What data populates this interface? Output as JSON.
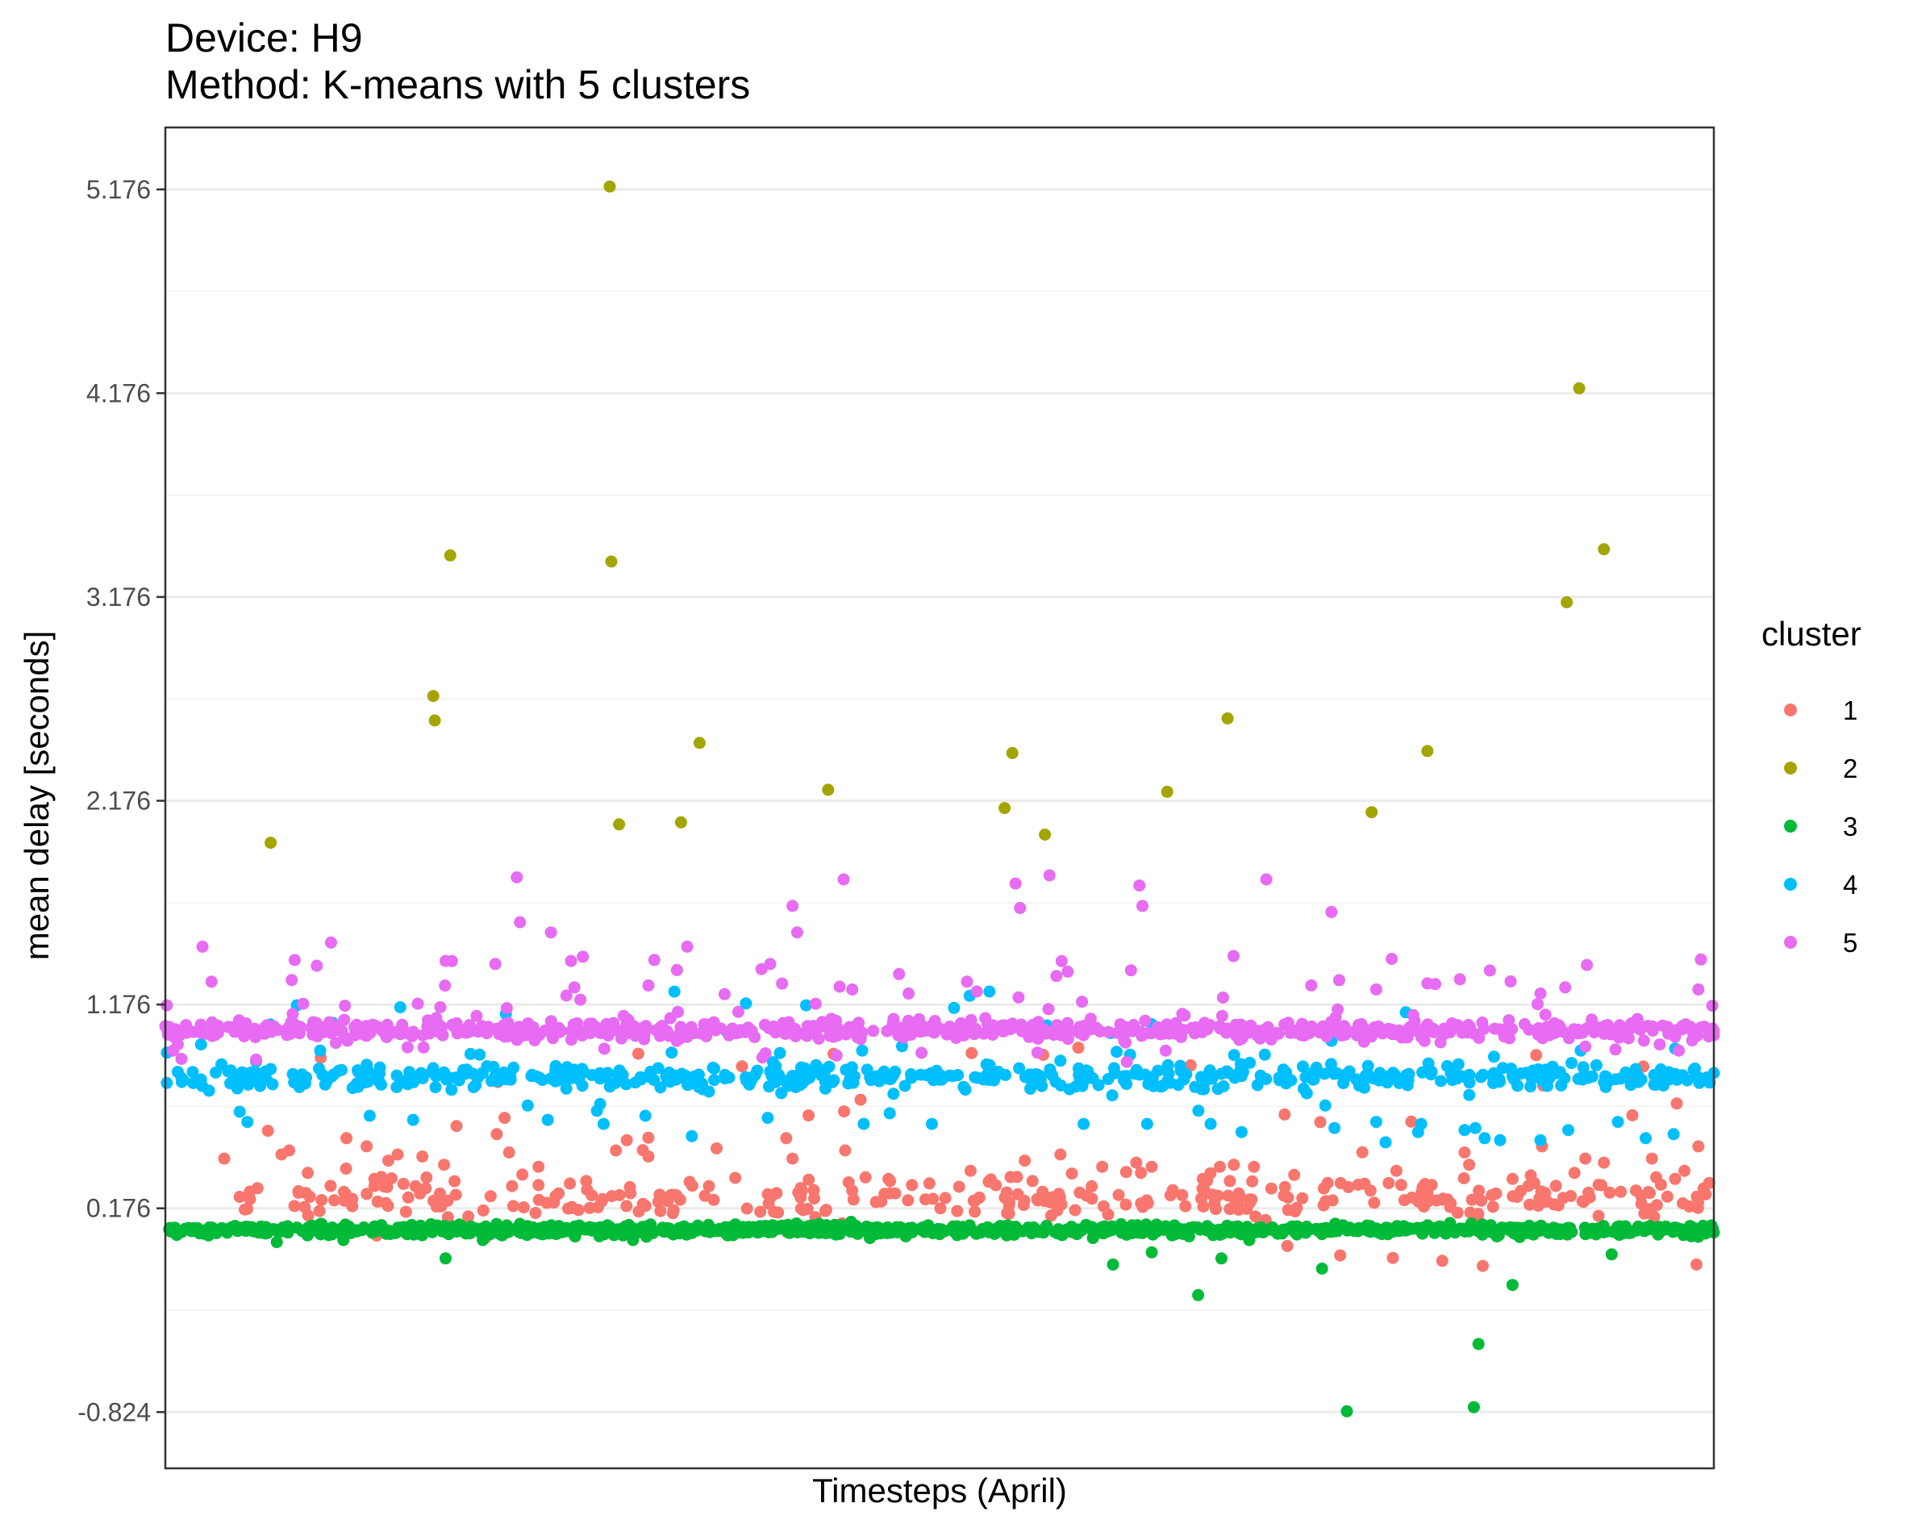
{
  "chart_data": {
    "type": "scatter",
    "title": "Device: H9",
    "subtitle": "Method: K-means with 5 clusters",
    "xlabel": "Timesteps (April)",
    "ylabel": "mean delay [seconds]",
    "x_ticks_shown": false,
    "xlim": [
      0,
      1000
    ],
    "ylim": [
      -1.1,
      5.48
    ],
    "y_ticks": [
      -0.824,
      0.176,
      1.176,
      2.176,
      3.176,
      4.176,
      5.176
    ],
    "y_tick_labels": [
      "-0.824",
      "0.176",
      "1.176",
      "2.176",
      "3.176",
      "4.176",
      "5.176"
    ],
    "y_minor_gridlines": true,
    "grid": true,
    "legend": {
      "title": "cluster",
      "position": "right"
    },
    "series": [
      {
        "name": "1",
        "color": "#F8766D",
        "generated": {
          "n": 340,
          "x_range": [
            45,
            998
          ],
          "base": 0.22,
          "spread": 0.13,
          "tail_rate": 0.14,
          "tail_max": 0.55,
          "seed": 11
        },
        "points": [
          [
            38,
            0.42
          ],
          [
            86,
            0.26
          ],
          [
            92,
            0.35
          ],
          [
            130,
            0.48
          ],
          [
            144,
            0.41
          ],
          [
            150,
            0.44
          ],
          [
            188,
            0.58
          ],
          [
            214,
            0.54
          ],
          [
            222,
            0.45
          ],
          [
            241,
            0.38
          ],
          [
            291,
            0.46
          ],
          [
            298,
            0.51
          ],
          [
            312,
            0.43
          ],
          [
            356,
            0.47
          ],
          [
            401,
            0.52
          ],
          [
            405,
            0.42
          ],
          [
            439,
            0.46
          ],
          [
            468,
            0.31
          ],
          [
            550,
            0.33
          ],
          [
            555,
            0.41
          ],
          [
            578,
            0.44
          ],
          [
            605,
            0.38
          ],
          [
            630,
            0.35
          ],
          [
            637,
            0.38
          ],
          [
            681,
            0.38
          ],
          [
            703,
            0.38
          ],
          [
            723,
            0.28
          ],
          [
            759,
            0.3
          ],
          [
            764,
            0.28
          ],
          [
            795,
            0.36
          ],
          [
            839,
            0.45
          ],
          [
            842,
            0.39
          ],
          [
            889,
            0.48
          ],
          [
            917,
            0.42
          ],
          [
            960,
            0.42
          ],
          [
            975,
            0.32
          ],
          [
            990,
            0.48
          ],
          [
            997,
            0.3
          ],
          [
            981,
            0.36
          ],
          [
            929,
            0.4
          ],
          [
            910,
            0.35
          ],
          [
            884,
            0.3
          ],
          [
            870,
            0.32
          ],
          [
            815,
            0.28
          ],
          [
            790,
            0.3
          ],
          [
            729,
            0.34
          ],
          [
            690,
            0.39
          ],
          [
            670,
            0.32
          ],
          [
            627,
            0.4
          ],
          [
            560,
            0.31
          ],
          [
            520,
            0.36
          ],
          [
            467,
            0.32
          ],
          [
            300,
            0.28
          ],
          [
            241,
            0.29
          ],
          [
            180,
            0.39
          ],
          [
            166,
            0.43
          ],
          [
            135,
            0.32
          ],
          [
            117,
            0.52
          ],
          [
            80,
            0.46
          ],
          [
            75,
            0.44
          ]
        ]
      },
      {
        "name": "2",
        "color": "#A3A500",
        "points": [
          [
            68,
            1.97
          ],
          [
            173,
            2.69
          ],
          [
            174,
            2.57
          ],
          [
            184,
            3.38
          ],
          [
            287,
            5.19
          ],
          [
            288,
            3.35
          ],
          [
            293,
            2.06
          ],
          [
            333,
            2.07
          ],
          [
            345,
            2.46
          ],
          [
            428,
            2.23
          ],
          [
            542,
            2.14
          ],
          [
            547,
            2.41
          ],
          [
            568,
            2.01
          ],
          [
            647,
            2.22
          ],
          [
            686,
            2.58
          ],
          [
            779,
            2.12
          ],
          [
            815,
            2.42
          ],
          [
            905,
            3.15
          ],
          [
            913,
            4.2
          ],
          [
            929,
            3.41
          ]
        ]
      },
      {
        "name": "3",
        "color": "#00BA38",
        "generated": {
          "n": 1050,
          "x_range": [
            0,
            1000
          ],
          "base": 0.07,
          "spread": 0.035,
          "tail_rate": 0.0,
          "tail_max": 0.0,
          "seed": 22
        },
        "points": [
          [
            181,
            -0.07
          ],
          [
            612,
            -0.1
          ],
          [
            637,
            -0.04
          ],
          [
            667,
            -0.25
          ],
          [
            682,
            -0.07
          ],
          [
            747,
            -0.12
          ],
          [
            763,
            -0.82
          ],
          [
            845,
            -0.8
          ],
          [
            848,
            -0.49
          ],
          [
            870,
            -0.2
          ],
          [
            934,
            -0.05
          ],
          [
            72,
            0.01
          ],
          [
            115,
            0.02
          ],
          [
            205,
            0.02
          ],
          [
            302,
            0.02
          ],
          [
            455,
            0.03
          ],
          [
            599,
            0.03
          ],
          [
            700,
            0.02
          ]
        ]
      },
      {
        "name": "4",
        "color": "#00BFFF",
        "generated": {
          "n": 560,
          "x_range": [
            0,
            1000
          ],
          "base": 0.82,
          "spread": 0.08,
          "tail_rate": 0.12,
          "tail_max": 0.3,
          "seed": 33
        },
        "points": [
          [
            48,
            0.65
          ],
          [
            53,
            0.6
          ],
          [
            132,
            0.63
          ],
          [
            160,
            0.61
          ],
          [
            247,
            0.61
          ],
          [
            283,
            0.59
          ],
          [
            310,
            0.63
          ],
          [
            340,
            0.53
          ],
          [
            389,
            0.62
          ],
          [
            451,
            0.59
          ],
          [
            495,
            0.59
          ],
          [
            593,
            0.59
          ],
          [
            634,
            0.59
          ],
          [
            675,
            0.59
          ],
          [
            695,
            0.55
          ],
          [
            755,
            0.57
          ],
          [
            782,
            0.6
          ],
          [
            788,
            0.5
          ],
          [
            809,
            0.55
          ],
          [
            811,
            0.59
          ],
          [
            839,
            0.56
          ],
          [
            846,
            0.57
          ],
          [
            852,
            0.52
          ],
          [
            862,
            0.51
          ],
          [
            888,
            0.51
          ],
          [
            906,
            0.56
          ],
          [
            938,
            0.6
          ],
          [
            956,
            0.52
          ],
          [
            974,
            0.54
          ],
          [
            1000,
            0.84
          ],
          [
            975,
            0.96
          ],
          [
            914,
            0.95
          ],
          [
            858,
            0.92
          ],
          [
            710,
            0.93
          ],
          [
            623,
            0.93
          ],
          [
            578,
            0.9
          ],
          [
            450,
            0.95
          ],
          [
            327,
            0.94
          ],
          [
            203,
            0.93
          ],
          [
            100,
            0.95
          ],
          [
            23,
            0.98
          ],
          [
            1,
            0.94
          ]
        ]
      },
      {
        "name": "5",
        "color": "#E76BF3",
        "generated": {
          "n": 760,
          "x_range": [
            0,
            1000
          ],
          "base": 1.05,
          "spread": 0.06,
          "tail_rate": 0.1,
          "tail_max": 0.26,
          "seed": 44
        },
        "points": [
          [
            0,
            1.07
          ],
          [
            5,
            0.95
          ],
          [
            8,
            0.98
          ],
          [
            24,
            1.46
          ],
          [
            107,
            1.48
          ],
          [
            163,
            1.18
          ],
          [
            181,
            1.39
          ],
          [
            227,
            1.8
          ],
          [
            229,
            1.58
          ],
          [
            249,
            1.53
          ],
          [
            262,
            1.39
          ],
          [
            268,
            1.2
          ],
          [
            312,
            1.27
          ],
          [
            337,
            1.46
          ],
          [
            385,
            1.35
          ],
          [
            405,
            1.66
          ],
          [
            408,
            1.53
          ],
          [
            438,
            1.79
          ],
          [
            549,
            1.77
          ],
          [
            552,
            1.65
          ],
          [
            571,
            1.81
          ],
          [
            629,
            1.76
          ],
          [
            631,
            1.66
          ],
          [
            711,
            1.79
          ],
          [
            753,
            1.63
          ],
          [
            792,
            1.4
          ],
          [
            815,
            1.28
          ],
          [
            836,
            1.3
          ],
          [
            904,
            1.26
          ],
          [
            918,
            1.37
          ],
          [
            986,
            1.0
          ],
          [
            990,
            1.25
          ],
          [
            999,
            1.17
          ],
          [
            965,
            0.98
          ],
          [
            945,
            1.01
          ],
          [
            917,
            0.97
          ],
          [
            888,
            1.23
          ],
          [
            868,
            1.01
          ],
          [
            782,
            1.25
          ],
          [
            740,
            1.27
          ],
          [
            683,
            1.21
          ],
          [
            646,
            0.95
          ],
          [
            592,
            1.19
          ],
          [
            524,
            1.24
          ],
          [
            480,
            1.23
          ],
          [
            420,
            1.18
          ],
          [
            370,
            1.14
          ],
          [
            331,
            1.14
          ],
          [
            296,
            1.12
          ],
          [
            259,
            1.22
          ],
          [
            201,
            1.12
          ],
          [
            116,
            1.17
          ],
          [
            89,
            1.18
          ]
        ]
      }
    ]
  }
}
